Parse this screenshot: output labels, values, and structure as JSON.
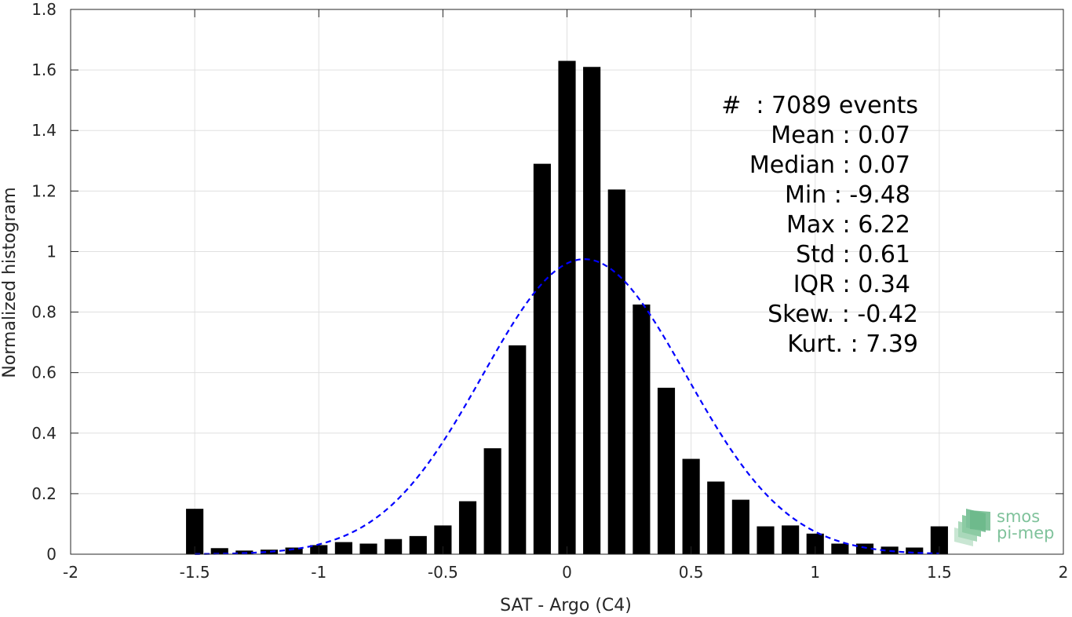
{
  "chart_data": {
    "type": "bar",
    "title": "",
    "xlabel": "SAT - Argo (C4)",
    "ylabel": "Normalized histogram",
    "xlim": [
      -2,
      2
    ],
    "ylim": [
      0,
      1.8
    ],
    "xticks": [
      "-2",
      "-1.5",
      "-1",
      "-0.5",
      "0",
      "0.5",
      "1",
      "1.5",
      "2"
    ],
    "yticks": [
      "0",
      "0.2",
      "0.4",
      "0.6",
      "0.8",
      "1",
      "1.2",
      "1.4",
      "1.6",
      "1.8"
    ],
    "grid": true,
    "bar_width": 0.07,
    "bar_color": "#000000",
    "x": [
      -1.5,
      -1.4,
      -1.3,
      -1.2,
      -1.1,
      -1.0,
      -0.9,
      -0.8,
      -0.7,
      -0.6,
      -0.5,
      -0.4,
      -0.3,
      -0.2,
      -0.1,
      0.0,
      0.1,
      0.2,
      0.3,
      0.4,
      0.5,
      0.6,
      0.7,
      0.8,
      0.9,
      1.0,
      1.1,
      1.2,
      1.3,
      1.4,
      1.5
    ],
    "values": [
      0.15,
      0.02,
      0.012,
      0.015,
      0.022,
      0.03,
      0.04,
      0.035,
      0.05,
      0.06,
      0.095,
      0.175,
      0.35,
      0.69,
      1.29,
      1.63,
      1.61,
      1.205,
      0.825,
      0.55,
      0.315,
      0.24,
      0.18,
      0.092,
      0.095,
      0.068,
      0.035,
      0.035,
      0.025,
      0.022,
      0.092
    ],
    "fit_curve": {
      "type": "gaussian",
      "mean": 0.07,
      "std": 0.41,
      "peak": 0.975,
      "x_range": [
        -1.5,
        1.5
      ],
      "color": "#0000ff",
      "style": "dashed"
    },
    "annotations": [
      "#  : 7089 events",
      "Mean : 0.07",
      "Median : 0.07",
      "Min : -9.48",
      "Max : 6.22",
      "Std : 0.61",
      "IQR : 0.34",
      "Skew. : -0.42",
      "Kurt. : 7.39"
    ]
  },
  "logo": {
    "name": "smos-pi-mep-logo",
    "line1": "smos",
    "line2": "pi-mep",
    "color": "#7fc29b"
  }
}
